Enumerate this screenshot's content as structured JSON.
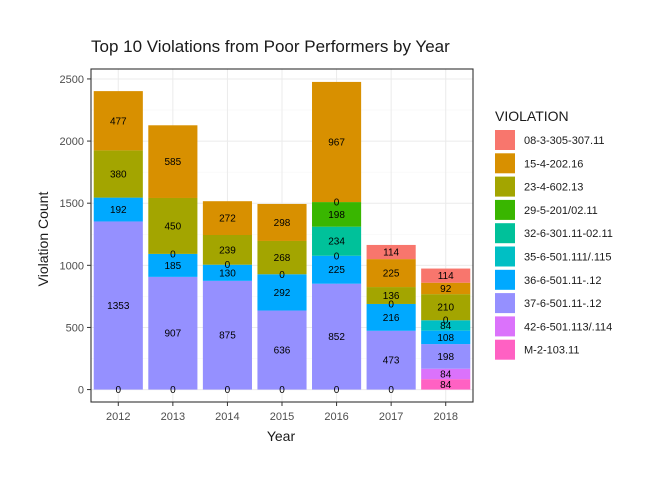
{
  "chart_data": {
    "type": "bar",
    "stacked": true,
    "title": "Top 10 Violations from Poor Performers by Year",
    "xlabel": "Year",
    "ylabel": "Violation Count",
    "categories": [
      "2012",
      "2013",
      "2014",
      "2015",
      "2016",
      "2017",
      "2018"
    ],
    "ylim": [
      -100,
      2580
    ],
    "y_ticks": [
      0,
      500,
      1000,
      1500,
      2000,
      2500
    ],
    "grid": true,
    "legend_position": "right",
    "legend_title": "VIOLATION",
    "series": [
      {
        "name": "M-2-103.11",
        "color": "#FF61C3",
        "values": [
          0,
          0,
          0,
          0,
          0,
          0,
          84
        ]
      },
      {
        "name": "42-6-501.113/.114",
        "color": "#DB72FB",
        "values": [
          0,
          0,
          0,
          0,
          0,
          0,
          84
        ]
      },
      {
        "name": "37-6-501.11-.12",
        "color": "#9590FF",
        "values": [
          1353,
          907,
          875,
          636,
          852,
          473,
          198
        ]
      },
      {
        "name": "36-6-501.11-.12",
        "color": "#00A9FF",
        "values": [
          192,
          185,
          130,
          292,
          225,
          216,
          108
        ]
      },
      {
        "name": "35-6-501.111/.115",
        "color": "#00BFC4",
        "values": [
          0,
          0,
          0,
          0,
          0,
          0,
          84
        ]
      },
      {
        "name": "32-6-301.11-02.11",
        "color": "#00C19A",
        "values": [
          0,
          0,
          0,
          0,
          234,
          0,
          0
        ]
      },
      {
        "name": "29-5-201/02.11",
        "color": "#39B600",
        "values": [
          0,
          0,
          0,
          0,
          198,
          0,
          0
        ]
      },
      {
        "name": "23-4-602.13",
        "color": "#A3A500",
        "values": [
          380,
          450,
          239,
          268,
          0,
          136,
          210
        ]
      },
      {
        "name": "15-4-202.16",
        "color": "#D89000",
        "values": [
          477,
          585,
          272,
          298,
          967,
          225,
          92
        ]
      },
      {
        "name": "08-3-305-307.11",
        "color": "#F8766D",
        "values": [
          0,
          0,
          0,
          0,
          0,
          114,
          114
        ]
      }
    ],
    "labeled_zeros": {
      "M-2-103.11": [
        0,
        0,
        0,
        0,
        0,
        0,
        null
      ],
      "36-6-501.11-.12": [
        0,
        0,
        0,
        0,
        0,
        0,
        null
      ],
      "35-6-501.111/.115": [
        null,
        0,
        0,
        0,
        0,
        0,
        null
      ],
      "29-5-201/02.11": [
        null,
        null,
        null,
        null,
        null,
        null,
        0
      ],
      "23-4-602.13": [
        0,
        null,
        null,
        null,
        0,
        null,
        null
      ],
      "15-4-202.16": [
        0,
        0,
        0,
        0,
        0,
        null,
        null
      ]
    }
  },
  "legend_order": [
    "08-3-305-307.11",
    "15-4-202.16",
    "23-4-602.13",
    "29-5-201/02.11",
    "32-6-301.11-02.11",
    "35-6-501.111/.115",
    "36-6-501.11-.12",
    "37-6-501.11-.12",
    "42-6-501.113/.114",
    "M-2-103.11"
  ],
  "colors": {
    "panel_background": "#FFFFFF",
    "panel_border": "#333333",
    "grid_major": "#EBEBEB",
    "grid_minor": "#F5F5F5"
  }
}
